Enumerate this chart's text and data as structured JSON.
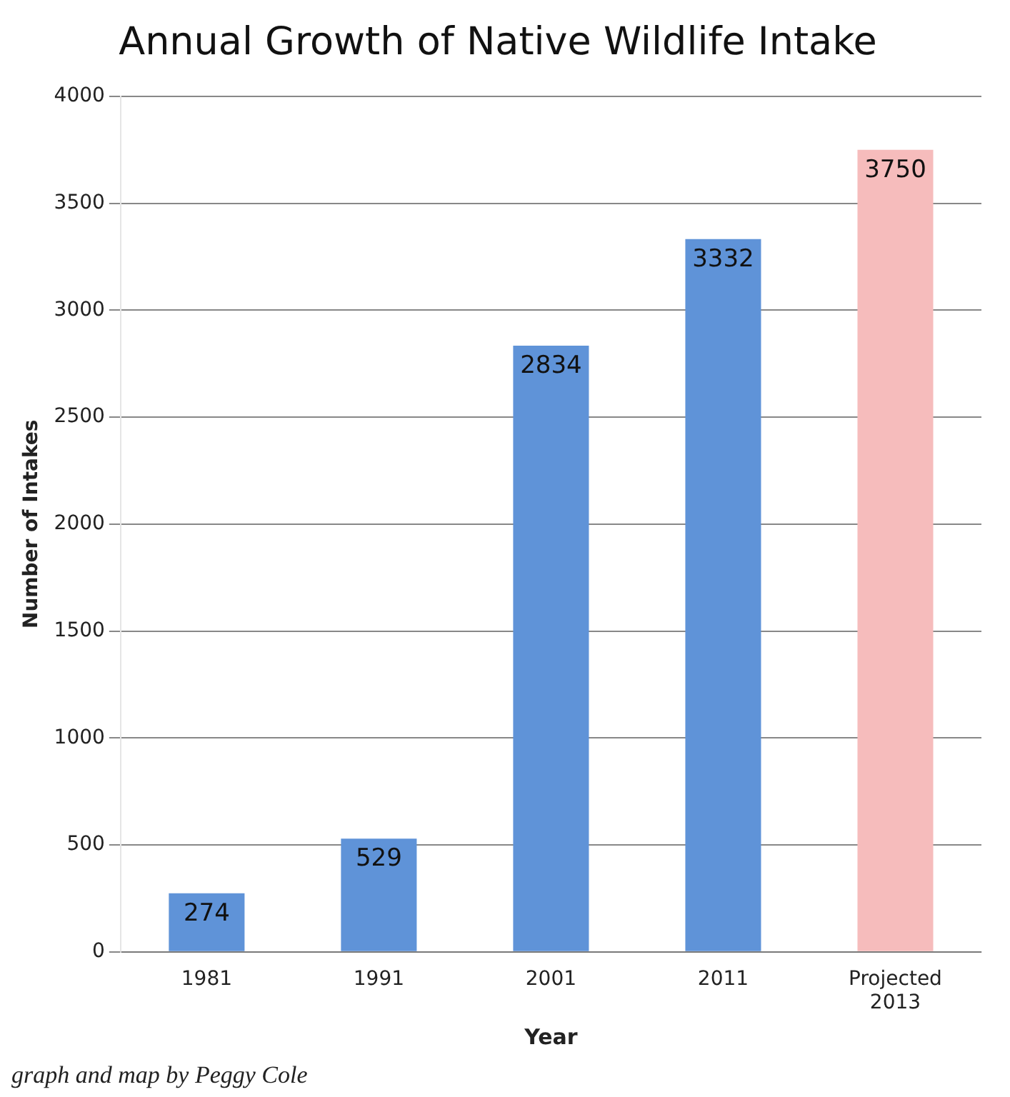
{
  "chart_data": {
    "type": "bar",
    "title": "Annual Growth of Native Wildlife Intake",
    "xlabel": "Year",
    "ylabel": "Number of Intakes",
    "categories": [
      "1981",
      "1991",
      "2001",
      "2011",
      "Projected 2013"
    ],
    "values": [
      274,
      529,
      2834,
      3332,
      3750
    ],
    "colors": [
      "#5f93d8",
      "#5f93d8",
      "#5f93d8",
      "#5f93d8",
      "#f6bcbc"
    ],
    "ylim": [
      0,
      4000
    ],
    "yticks": [
      0,
      500,
      1000,
      1500,
      2000,
      2500,
      3000,
      3500,
      4000
    ],
    "grid": "y",
    "legend": false,
    "data_labels": true,
    "annotations": [
      "graph and map by Peggy Cole"
    ]
  }
}
